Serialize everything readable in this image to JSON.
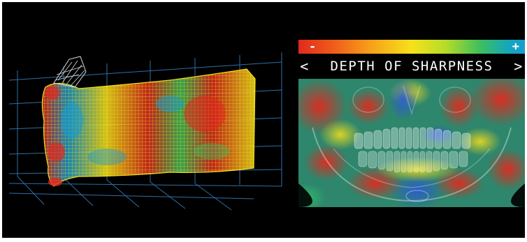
{
  "legend": {
    "minus_sign": "-",
    "plus_sign": "+",
    "gradient_colors": [
      "#e02a1e",
      "#f7a11a",
      "#f7e11a",
      "#3fbf5a",
      "#1a9ccf"
    ]
  },
  "header": {
    "prev_symbol": "<",
    "title": "DEPTH OF SHARPNESS",
    "next_symbol": ">"
  },
  "colors": {
    "background": "#000000",
    "grid": "#2f6fa5",
    "mesh_low": "#1a9ccf",
    "mesh_high": "#e02a1e"
  },
  "icons": {
    "prev": "chevron-left-icon",
    "next": "chevron-right-icon"
  }
}
